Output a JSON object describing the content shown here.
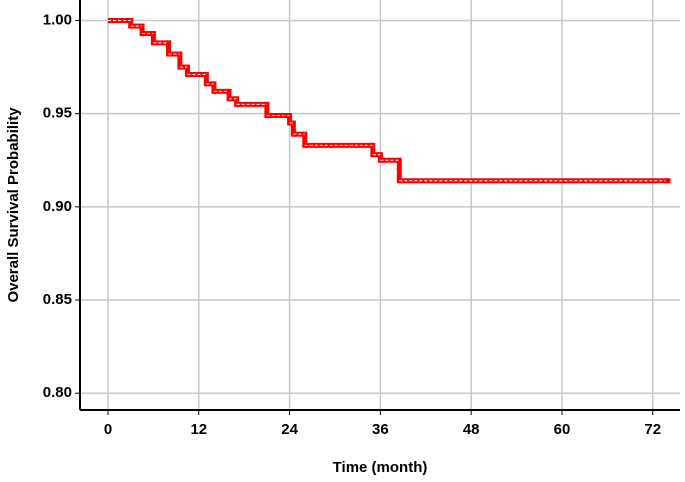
{
  "chart_data": {
    "type": "step",
    "x_label": "Time (month)",
    "y_label": "Overall Survival Probability",
    "x": [
      0,
      3,
      4.5,
      6,
      8,
      9.5,
      10.5,
      13,
      14,
      16,
      17,
      21,
      24,
      24.5,
      26,
      35,
      36,
      38.5,
      74
    ],
    "values": [
      1.0,
      0.997,
      0.993,
      0.988,
      0.982,
      0.975,
      0.971,
      0.966,
      0.962,
      0.958,
      0.955,
      0.949,
      0.945,
      0.939,
      0.933,
      0.928,
      0.925,
      0.914,
      0.914
    ],
    "color": "#ff0000",
    "xlim": [
      -3.7,
      75.6
    ],
    "xticks": [
      0,
      12,
      24,
      36,
      48,
      60,
      72
    ],
    "ylim": [
      0.791,
      1.011
    ],
    "yticks": [
      {
        "value": 0.8,
        "label": "0.80"
      },
      {
        "value": 0.85,
        "label": "0.85"
      },
      {
        "value": 0.9,
        "label": "0.90"
      },
      {
        "value": 0.95,
        "label": "0.95"
      },
      {
        "value": 1.0,
        "label": "1.00"
      }
    ],
    "grid": true
  }
}
